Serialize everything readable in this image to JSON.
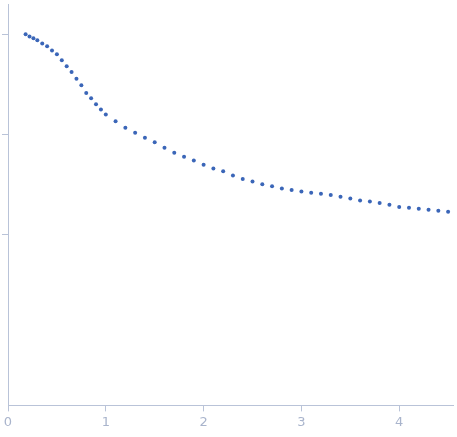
{
  "chart_data": {
    "type": "scatter",
    "log": "y",
    "grid": false,
    "tick_labels": "x",
    "color": "#3b66b8",
    "marker": "circle",
    "xlim": [
      0,
      4.55
    ],
    "xticks": [
      0,
      1,
      2,
      3,
      4
    ],
    "ylim": [
      0.02,
      200
    ],
    "yticks": [
      1,
      10,
      100
    ],
    "x": [
      0.18,
      0.22,
      0.26,
      0.3,
      0.35,
      0.4,
      0.45,
      0.5,
      0.55,
      0.6,
      0.65,
      0.7,
      0.75,
      0.8,
      0.85,
      0.9,
      0.95,
      1.0,
      1.1,
      1.2,
      1.3,
      1.4,
      1.5,
      1.6,
      1.7,
      1.8,
      1.9,
      2.0,
      2.1,
      2.2,
      2.3,
      2.4,
      2.5,
      2.6,
      2.7,
      2.8,
      2.9,
      3.0,
      3.1,
      3.2,
      3.3,
      3.4,
      3.5,
      3.6,
      3.7,
      3.8,
      3.9,
      4.0,
      4.1,
      4.2,
      4.3,
      4.4,
      4.5
    ],
    "values": [
      100,
      95,
      91,
      87,
      81,
      76,
      69,
      63,
      55,
      48,
      42,
      36,
      31,
      26,
      23,
      20,
      17.8,
      15.8,
      13.6,
      11.7,
      10.4,
      9.3,
      8.4,
      7.4,
      6.6,
      6.0,
      5.5,
      5.0,
      4.6,
      4.3,
      3.9,
      3.6,
      3.4,
      3.2,
      3.05,
      2.9,
      2.8,
      2.7,
      2.63,
      2.57,
      2.5,
      2.4,
      2.3,
      2.2,
      2.15,
      2.08,
      2.0,
      1.9,
      1.86,
      1.82,
      1.78,
      1.74,
      1.7
    ]
  }
}
